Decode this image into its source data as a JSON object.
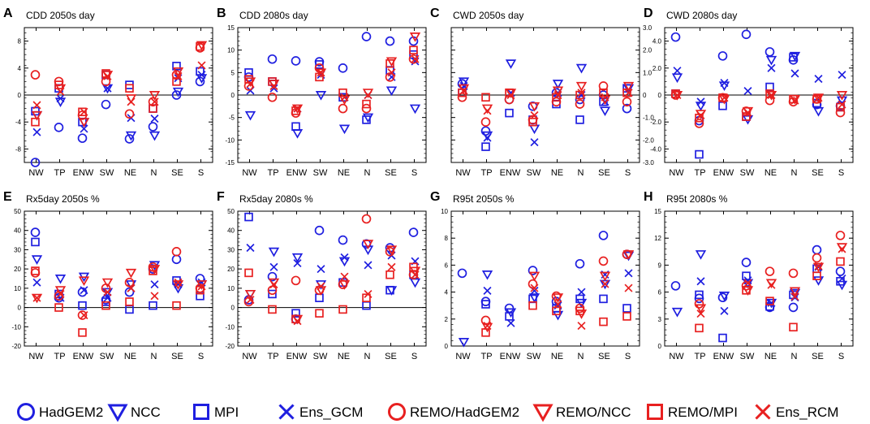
{
  "x_categories": [
    "NW",
    "TP",
    "ENW",
    "SW",
    "NE",
    "N",
    "SE",
    "S"
  ],
  "colors": {
    "gcm": "#1f1fe0",
    "rcm": "#e82020",
    "axis": "#000000"
  },
  "legend": [
    {
      "name": "HadGEM2",
      "marker": "circle",
      "group": "gcm"
    },
    {
      "name": "NCC",
      "marker": "triangle",
      "group": "gcm"
    },
    {
      "name": "MPI",
      "marker": "square",
      "group": "gcm"
    },
    {
      "name": "Ens_GCM",
      "marker": "cross",
      "group": "gcm"
    },
    {
      "name": "REMO/HadGEM2",
      "marker": "circle",
      "group": "rcm"
    },
    {
      "name": "REMO/NCC",
      "marker": "triangle",
      "group": "rcm"
    },
    {
      "name": "REMO/MPI",
      "marker": "square",
      "group": "rcm"
    },
    {
      "name": "Ens_RCM",
      "marker": "cross",
      "group": "rcm"
    }
  ],
  "chart_data": [
    {
      "type": "scatter",
      "letter": "A",
      "title": "CDD 2050s day",
      "ylim": [
        -10,
        10
      ],
      "yticks": [
        -8,
        -4,
        0,
        4,
        8
      ],
      "ytick_side": "left",
      "zero_line": true,
      "series": {
        "HadGEM2": [
          -10,
          -4.8,
          -6.4,
          -1.4,
          -6.5,
          -4.7,
          0,
          2
        ],
        "NCC": [
          -3,
          -1,
          -4,
          1,
          -6,
          -6,
          0.5,
          2.5
        ],
        "MPI": [
          -2.4,
          1,
          -4,
          3,
          1.5,
          -2,
          4.3,
          3.5
        ],
        "Ens_GCM": [
          -5.5,
          -0.5,
          -5,
          1,
          -3.4,
          -3.5,
          2.5,
          3
        ],
        "REMO/HadGEM2": [
          3,
          2,
          -3,
          2,
          -2.8,
          -1,
          3,
          7
        ],
        "REMO/NCC": [
          -3,
          1,
          -4,
          3,
          -0.5,
          0,
          3.5,
          7.4
        ],
        "REMO/MPI": [
          -4,
          1.5,
          -2.5,
          3.2,
          1,
          -2,
          2,
          7.2
        ],
        "Ens_RCM": [
          -1.5,
          0.5,
          -2.5,
          2.8,
          -1,
          -1,
          2.8,
          4.4
        ]
      }
    },
    {
      "type": "scatter",
      "letter": "B",
      "title": "CDD 2080s day",
      "ylim": [
        -15,
        15
      ],
      "yticks": [
        -15,
        -10,
        -5,
        0,
        5,
        10,
        15
      ],
      "ytick_side": "left",
      "zero_line": true,
      "series": {
        "HadGEM2": [
          4,
          8,
          7.6,
          7.4,
          6,
          13,
          12,
          12
        ],
        "NCC": [
          -4.5,
          2.5,
          -8.5,
          0,
          -7.5,
          -5,
          1,
          -3
        ],
        "MPI": [
          5,
          3,
          -7,
          6.8,
          -0.5,
          -5.5,
          5.5,
          9
        ],
        "Ens_GCM": [
          1,
          1.5,
          -3,
          4.5,
          -0.5,
          0,
          4,
          7.5
        ],
        "REMO/HadGEM2": [
          2,
          -0.5,
          -4,
          6,
          -3,
          -3,
          4,
          8
        ],
        "REMO/NCC": [
          3,
          2.5,
          -3,
          5,
          -1,
          0.5,
          7.5,
          13
        ],
        "REMO/MPI": [
          3.5,
          3,
          -3.5,
          4,
          0.5,
          -2,
          7,
          10
        ],
        "Ens_RCM": [
          2.5,
          2,
          -3,
          5,
          -0.5,
          0,
          5,
          8
        ]
      }
    },
    {
      "type": "scatter",
      "letter": "C",
      "title": "CWD 2050s day",
      "ylim": [
        -3,
        3
      ],
      "yticks": [
        -3.0,
        -2.0,
        -1.0,
        0,
        1.0,
        2.0,
        3.0
      ],
      "ytick_side": "right",
      "zero_line": true,
      "series": {
        "HadGEM2": [
          0.5,
          -1.6,
          -0.2,
          -0.5,
          0.1,
          -0.2,
          0,
          -0.6
        ],
        "NCC": [
          0.6,
          -1.8,
          1.4,
          -1.5,
          0.5,
          1.2,
          -0.7,
          0.3
        ],
        "MPI": [
          0.1,
          -2.3,
          -0.8,
          -1.1,
          -0.4,
          -1.1,
          -0.3,
          0.3
        ],
        "Ens_GCM": [
          0.4,
          -1.9,
          0.1,
          -2.1,
          0.1,
          0,
          -0.3,
          0.1
        ],
        "REMO/HadGEM2": [
          -0.1,
          -1.2,
          -0.2,
          -1.1,
          -0.3,
          -0.4,
          0.4,
          -0.3
        ],
        "REMO/NCC": [
          0.3,
          -0.6,
          0.1,
          -0.5,
          0.2,
          0.4,
          -0.2,
          0.4
        ],
        "REMO/MPI": [
          0.1,
          -0.1,
          0.1,
          -1.2,
          -0.1,
          0,
          0.1,
          0.1
        ],
        "Ens_RCM": [
          0.2,
          -0.7,
          0,
          -0.9,
          0,
          0.1,
          -0.1,
          0.1
        ]
      }
    },
    {
      "type": "scatter",
      "letter": "D",
      "title": "CWD 2080s day",
      "ylim": [
        -5,
        5
      ],
      "yticks": [
        -4.0,
        -2.0,
        0,
        2.0,
        4.0
      ],
      "ytick_side": "left",
      "zero_line": true,
      "series": {
        "HadGEM2": [
          4.3,
          -1.9,
          2.9,
          4.5,
          3.2,
          2.6,
          -0.7,
          -0.8
        ],
        "NCC": [
          1.3,
          -0.8,
          0.7,
          -1.8,
          2.6,
          2.9,
          -1.2,
          -0.4
        ],
        "MPI": [
          0.1,
          -4.4,
          -0.8,
          -1.6,
          0.6,
          2.8,
          -0.6,
          -0.9
        ],
        "Ens_GCM": [
          1.8,
          -0.5,
          0.9,
          0.3,
          2,
          1.6,
          1.2,
          1.5
        ],
        "REMO/HadGEM2": [
          0,
          -2.1,
          -0.2,
          -1.2,
          -0.4,
          -0.5,
          -0.3,
          -1.3
        ],
        "REMO/NCC": [
          0,
          -1.4,
          -0.3,
          -1.2,
          0,
          -0.3,
          -0.2,
          0
        ],
        "REMO/MPI": [
          0.1,
          -1.7,
          -0.2,
          -1.6,
          0.1,
          -0.3,
          -0.3,
          -0.9
        ],
        "Ens_RCM": [
          0,
          -1.5,
          -0.2,
          -1.3,
          0,
          -0.4,
          -0.2,
          -0.7
        ]
      }
    },
    {
      "type": "scatter",
      "letter": "E",
      "title": "Rx5day 2050s %",
      "ylim": [
        -20,
        50
      ],
      "yticks": [
        -20,
        -10,
        0,
        10,
        20,
        30,
        40,
        50
      ],
      "ytick_side": "left",
      "zero_line": true,
      "series": {
        "HadGEM2": [
          39,
          5,
          8,
          4,
          8,
          20,
          25,
          15
        ],
        "NCC": [
          25,
          15,
          16,
          8,
          12,
          22,
          10,
          12
        ],
        "MPI": [
          34,
          7,
          1,
          3,
          -1,
          1,
          14,
          6
        ],
        "Ens_GCM": [
          13,
          5,
          9,
          5,
          10,
          12,
          12,
          13
        ],
        "REMO/HadGEM2": [
          18,
          6,
          -4,
          10,
          13,
          21,
          29,
          10
        ],
        "REMO/NCC": [
          5,
          9,
          14,
          13,
          18,
          20,
          12,
          12
        ],
        "REMO/MPI": [
          19,
          0,
          -13,
          1,
          3,
          19,
          1,
          9
        ],
        "Ens_RCM": [
          5,
          7,
          -4,
          8,
          10,
          6,
          13,
          11
        ]
      }
    },
    {
      "type": "scatter",
      "letter": "F",
      "title": "Rx5day 2080s %",
      "ylim": [
        -20,
        50
      ],
      "yticks": [
        -20,
        -10,
        0,
        10,
        20,
        30,
        40,
        50
      ],
      "ytick_side": "left",
      "zero_line": true,
      "series": {
        "HadGEM2": [
          4,
          16,
          -6,
          40,
          35,
          33,
          31,
          39
        ],
        "NCC": [
          7,
          29,
          26,
          12,
          24,
          30,
          9,
          13
        ],
        "MPI": [
          47,
          7,
          -3,
          5,
          13,
          1,
          9,
          17
        ],
        "Ens_GCM": [
          31,
          21,
          23,
          20,
          26,
          22,
          27,
          24
        ],
        "REMO/HadGEM2": [
          3,
          9,
          14,
          9,
          12,
          46,
          29,
          17
        ],
        "REMO/NCC": [
          7,
          13,
          -6,
          9,
          12,
          33,
          30,
          19
        ],
        "REMO/MPI": [
          18,
          -1,
          -6,
          -3,
          -1,
          5,
          17,
          21
        ],
        "Ens_RCM": [
          4,
          12,
          -7,
          11,
          16,
          7,
          21,
          17
        ]
      }
    },
    {
      "type": "scatter",
      "letter": "G",
      "title": "R95t 2050s %",
      "ylim": [
        0,
        10
      ],
      "yticks": [
        0,
        2,
        4,
        6,
        8,
        10
      ],
      "ytick_side": "left",
      "zero_line": false,
      "series": {
        "HadGEM2": [
          5.4,
          3.3,
          2.8,
          5.6,
          3.3,
          6.1,
          8.2,
          6.8
        ],
        "NCC": [
          0.3,
          5.3,
          2.5,
          3.6,
          2.3,
          3.2,
          4.6,
          6.7
        ],
        "MPI": [
          null,
          3.1,
          2.2,
          3.5,
          2.8,
          3.5,
          3.5,
          2.8
        ],
        "Ens_GCM": [
          null,
          4.1,
          1.7,
          4.1,
          3,
          4,
          5.3,
          5.4
        ],
        "REMO/HadGEM2": [
          null,
          1.9,
          null,
          4.6,
          3.7,
          2.8,
          6.3,
          6.8
        ],
        "REMO/NCC": [
          null,
          1.4,
          null,
          5.2,
          3.6,
          2.4,
          5.2,
          6.8
        ],
        "REMO/MPI": [
          null,
          1,
          null,
          3,
          2.6,
          2.6,
          1.8,
          2.2
        ],
        "Ens_RCM": [
          null,
          1.5,
          null,
          4.3,
          3.1,
          1.5,
          4.6,
          4.3
        ]
      }
    },
    {
      "type": "scatter",
      "letter": "H",
      "title": "R95t 2080s %",
      "ylim": [
        0,
        15
      ],
      "yticks": [
        0,
        3,
        6,
        9,
        12,
        15
      ],
      "ytick_side": "left",
      "zero_line": false,
      "series": {
        "HadGEM2": [
          6.7,
          5.3,
          5.4,
          9.3,
          4.3,
          4.3,
          10.7,
          8.3
        ],
        "NCC": [
          3.8,
          10.2,
          5.6,
          7,
          4.8,
          5.9,
          7.3,
          6.8
        ],
        "MPI": [
          null,
          5.7,
          0.9,
          7.8,
          4.4,
          5.7,
          8.6,
          7.2
        ],
        "Ens_GCM": [
          null,
          7.2,
          3.9,
          7.3,
          4.8,
          5.4,
          8.8,
          7.5
        ],
        "REMO/HadGEM2": [
          null,
          4.7,
          null,
          6.7,
          8.3,
          8.1,
          9.8,
          12.3
        ],
        "REMO/NCC": [
          null,
          4.2,
          null,
          6.2,
          7,
          6.1,
          8.8,
          11
        ],
        "REMO/MPI": [
          null,
          2,
          null,
          6.2,
          5,
          2.1,
          7.8,
          9.4
        ],
        "Ens_RCM": [
          null,
          3.6,
          null,
          7,
          6.8,
          5.5,
          8.9,
          10.8
        ]
      }
    }
  ]
}
